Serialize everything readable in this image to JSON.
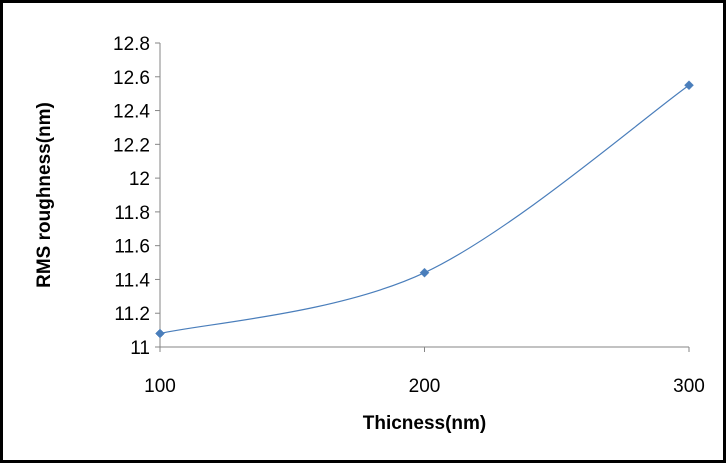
{
  "chart_data": {
    "type": "line",
    "xlabel": "Thicness(nm)",
    "ylabel": "RMS roughness(nm)",
    "x": [
      100,
      200,
      300
    ],
    "series": [
      {
        "values": [
          11.08,
          11.44,
          12.55
        ]
      }
    ],
    "xlim": [
      100,
      300
    ],
    "ylim": [
      11,
      12.8
    ],
    "xticks": [
      "100",
      "200",
      "300"
    ],
    "yticks": [
      "11",
      "11.2",
      "11.4",
      "11.6",
      "11.8",
      "12",
      "12.2",
      "12.4",
      "12.6",
      "12.8"
    ],
    "smooth_line": true,
    "marker": "diamond",
    "grid": false,
    "legend": false,
    "colors": {
      "series": "#4a7ebb",
      "axis": "#868686",
      "text": "#000000"
    }
  }
}
